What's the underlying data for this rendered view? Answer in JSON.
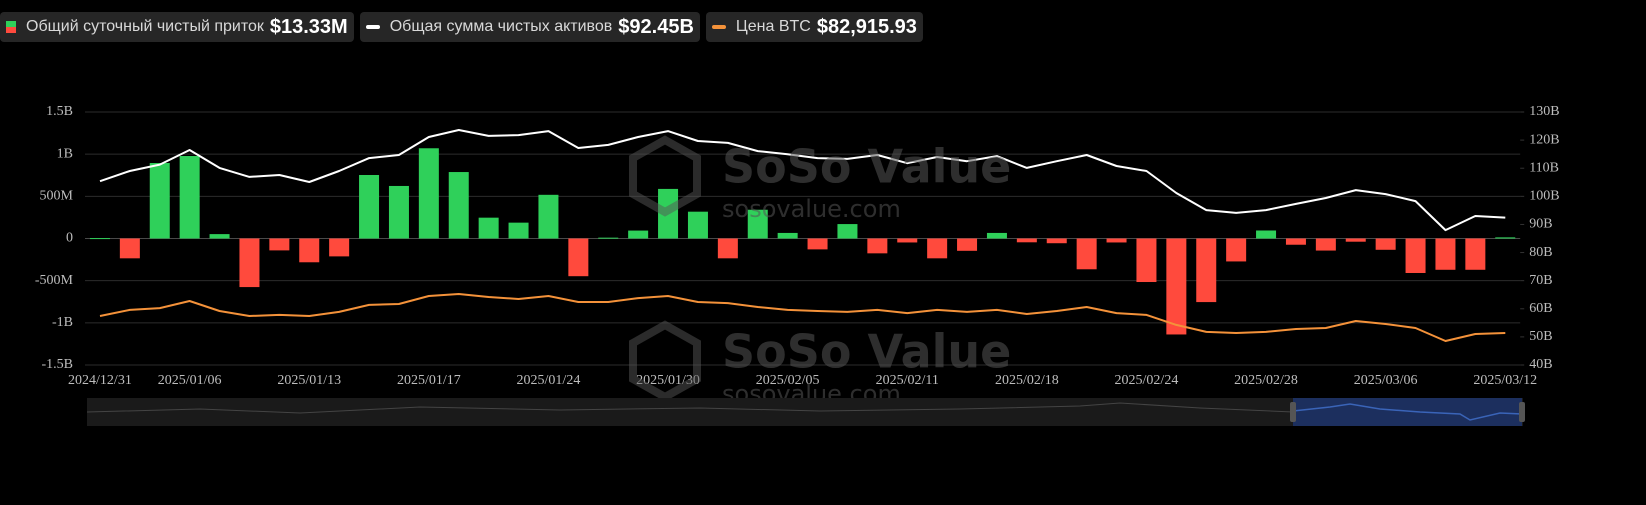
{
  "chart_data": {
    "type": "bar",
    "categories": [
      "2024/12/31",
      null,
      null,
      "2025/01/06",
      null,
      null,
      null,
      "2025/01/13",
      null,
      null,
      null,
      "2025/01/17",
      null,
      null,
      null,
      "2025/01/24",
      null,
      null,
      null,
      "2025/01/30",
      null,
      null,
      null,
      "2025/02/05",
      null,
      null,
      null,
      "2025/02/11",
      null,
      null,
      null,
      "2025/02/18",
      null,
      null,
      null,
      "2025/02/24",
      null,
      null,
      null,
      "2025/02/28",
      null,
      null,
      null,
      "2025/03/06",
      null,
      null,
      null,
      "2025/03/12"
    ],
    "ylim": [
      -1500,
      1500
    ],
    "yticks": [
      {
        "value": -1500,
        "label": "-1.5B"
      },
      {
        "value": -1000,
        "label": "-1B"
      },
      {
        "value": -500,
        "label": "-500M"
      },
      0,
      {
        "value": 500,
        "label": "500M"
      },
      {
        "value": 1000,
        "label": "1B"
      },
      {
        "value": 1500,
        "label": "1.5B"
      }
    ],
    "y2lim": [
      40,
      130
    ],
    "y2ticks": [
      {
        "value": 40,
        "label": "40B"
      },
      {
        "value": 50,
        "label": "50B"
      },
      {
        "value": 60,
        "label": "60B"
      },
      {
        "value": 70,
        "label": "70B"
      },
      {
        "value": 80,
        "label": "80B"
      },
      {
        "value": 90,
        "label": "90B"
      },
      {
        "value": 100,
        "label": "100B"
      },
      {
        "value": 110,
        "label": "110B"
      },
      {
        "value": 120,
        "label": "120B"
      },
      {
        "value": 130,
        "label": "130B"
      }
    ],
    "grid": true,
    "series": [
      {
        "name": "Общий суточный чистый приток",
        "latest_label": "$13.33M",
        "type": "bar",
        "color_positive": "#2fd05a",
        "color_negative": "#ff4a3d",
        "values": [
          5,
          -235,
          895,
          978,
          52,
          -576,
          -141,
          -282,
          -212,
          753,
          623,
          1070,
          788,
          247,
          188,
          518,
          -447,
          10,
          94,
          588,
          318,
          -235,
          341,
          66,
          -129,
          171,
          -176,
          -47,
          -235,
          -146,
          66,
          -45,
          -56,
          -365,
          -47,
          -516,
          -1138,
          -754,
          -272,
          95,
          -74,
          -143,
          -38,
          -134,
          -409,
          -371,
          -371,
          13.33
        ]
      },
      {
        "name": "Общая сумма чистых активов",
        "latest_label": "$92.45B",
        "type": "line",
        "axis": "y2",
        "color": "#ffffff",
        "values": [
          105.4,
          109.0,
          111.3,
          116.5,
          110.1,
          106.9,
          107.6,
          105.1,
          109.0,
          113.6,
          114.7,
          121.1,
          123.6,
          121.5,
          121.8,
          123.2,
          117.2,
          118.3,
          121.1,
          123.2,
          119.7,
          119.0,
          116.1,
          115.0,
          113.6,
          113.3,
          114.7,
          111.8,
          114.0,
          112.5,
          114.3,
          110.1,
          112.5,
          114.7,
          110.8,
          109.0,
          101.2,
          95.1,
          94.1,
          95.1,
          97.3,
          99.4,
          102.2,
          100.8,
          98.3,
          88.0,
          93.0,
          92.45
        ]
      },
      {
        "name": "Цена BTC",
        "latest_label": "$82,915.93",
        "type": "line",
        "axis": "own",
        "color": "#f4923a",
        "values": [
          92100,
          95400,
          96400,
          100200,
          94800,
          92100,
          92700,
          92100,
          94300,
          98100,
          98600,
          102900,
          104000,
          102400,
          101300,
          102900,
          99700,
          99700,
          101800,
          102900,
          99700,
          99100,
          97000,
          95400,
          94800,
          94300,
          95400,
          93700,
          95400,
          94300,
          95400,
          93200,
          94800,
          97000,
          93700,
          92700,
          87300,
          83500,
          82900,
          83500,
          85100,
          85600,
          89400,
          87800,
          85600,
          78600,
          82400,
          82915.93
        ]
      }
    ],
    "watermark": {
      "brand": "SoSo Value",
      "url": "sosovalue.com"
    }
  }
}
